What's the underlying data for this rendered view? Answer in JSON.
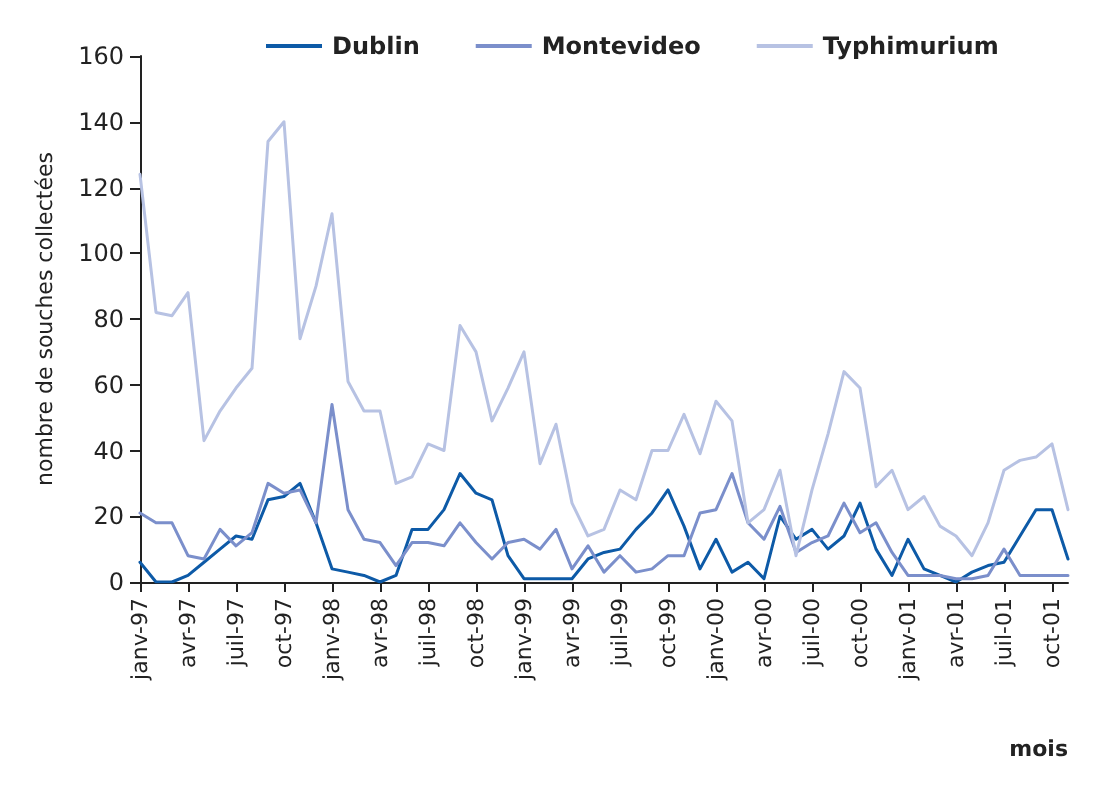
{
  "chart_data": {
    "type": "line",
    "xlabel": "mois",
    "ylabel": "nombre de souches collectées",
    "categories": [
      "janv-97",
      null,
      null,
      "avr-97",
      null,
      null,
      "juil-97",
      null,
      null,
      "oct-97",
      null,
      null,
      "janv-98",
      null,
      null,
      "avr-98",
      null,
      null,
      "juil-98",
      null,
      null,
      "oct-98",
      null,
      null,
      "janv-99",
      null,
      null,
      "avr-99",
      null,
      null,
      "juil-99",
      null,
      null,
      "oct-99",
      null,
      null,
      "janv-00",
      null,
      null,
      "avr-00",
      null,
      null,
      "juil-00",
      null,
      null,
      "oct-00",
      null,
      null,
      "janv-01",
      null,
      null,
      "avr-01",
      null,
      null,
      "juil-01",
      null,
      null,
      "oct-01",
      null
    ],
    "series": [
      {
        "name": "Dublin",
        "color": "#0d5aa7",
        "values": [
          6,
          0,
          0,
          2,
          6,
          10,
          14,
          13,
          25,
          26,
          30,
          18,
          4,
          3,
          2,
          0,
          2,
          16,
          16,
          22,
          33,
          27,
          25,
          8,
          1,
          1,
          1,
          1,
          7,
          9,
          10,
          16,
          21,
          28,
          17,
          4,
          13,
          3,
          6,
          1,
          20,
          13,
          16,
          10,
          14,
          24,
          10,
          2,
          13,
          4,
          2,
          0,
          3,
          5,
          6,
          14,
          22,
          22,
          7
        ]
      },
      {
        "name": "Montevideo",
        "color": "#7b8fcb",
        "values": [
          21,
          18,
          18,
          8,
          7,
          16,
          11,
          15,
          30,
          27,
          28,
          18,
          54,
          22,
          13,
          12,
          5,
          12,
          12,
          11,
          18,
          12,
          7,
          12,
          13,
          10,
          16,
          4,
          11,
          3,
          8,
          3,
          4,
          8,
          8,
          21,
          22,
          33,
          18,
          13,
          23,
          9,
          12,
          14,
          24,
          15,
          18,
          9,
          2,
          2,
          2,
          1,
          1,
          2,
          10,
          2,
          2,
          2,
          2
        ]
      },
      {
        "name": "Typhimurium",
        "color": "#b7c2e3",
        "values": [
          124,
          82,
          81,
          88,
          43,
          52,
          59,
          65,
          134,
          140,
          74,
          90,
          112,
          61,
          52,
          52,
          30,
          32,
          42,
          40,
          78,
          70,
          49,
          59,
          70,
          36,
          48,
          24,
          14,
          16,
          28,
          25,
          40,
          40,
          51,
          39,
          55,
          49,
          18,
          22,
          34,
          8,
          28,
          45,
          64,
          59,
          29,
          34,
          22,
          26,
          17,
          14,
          8,
          18,
          34,
          37,
          38,
          42,
          22
        ]
      }
    ],
    "ylim": [
      0,
      160
    ],
    "yticks": [
      0,
      20,
      40,
      60,
      80,
      100,
      120,
      140,
      160
    ],
    "grid": false,
    "legend": "top",
    "marker": "none",
    "line_style": "solid"
  }
}
